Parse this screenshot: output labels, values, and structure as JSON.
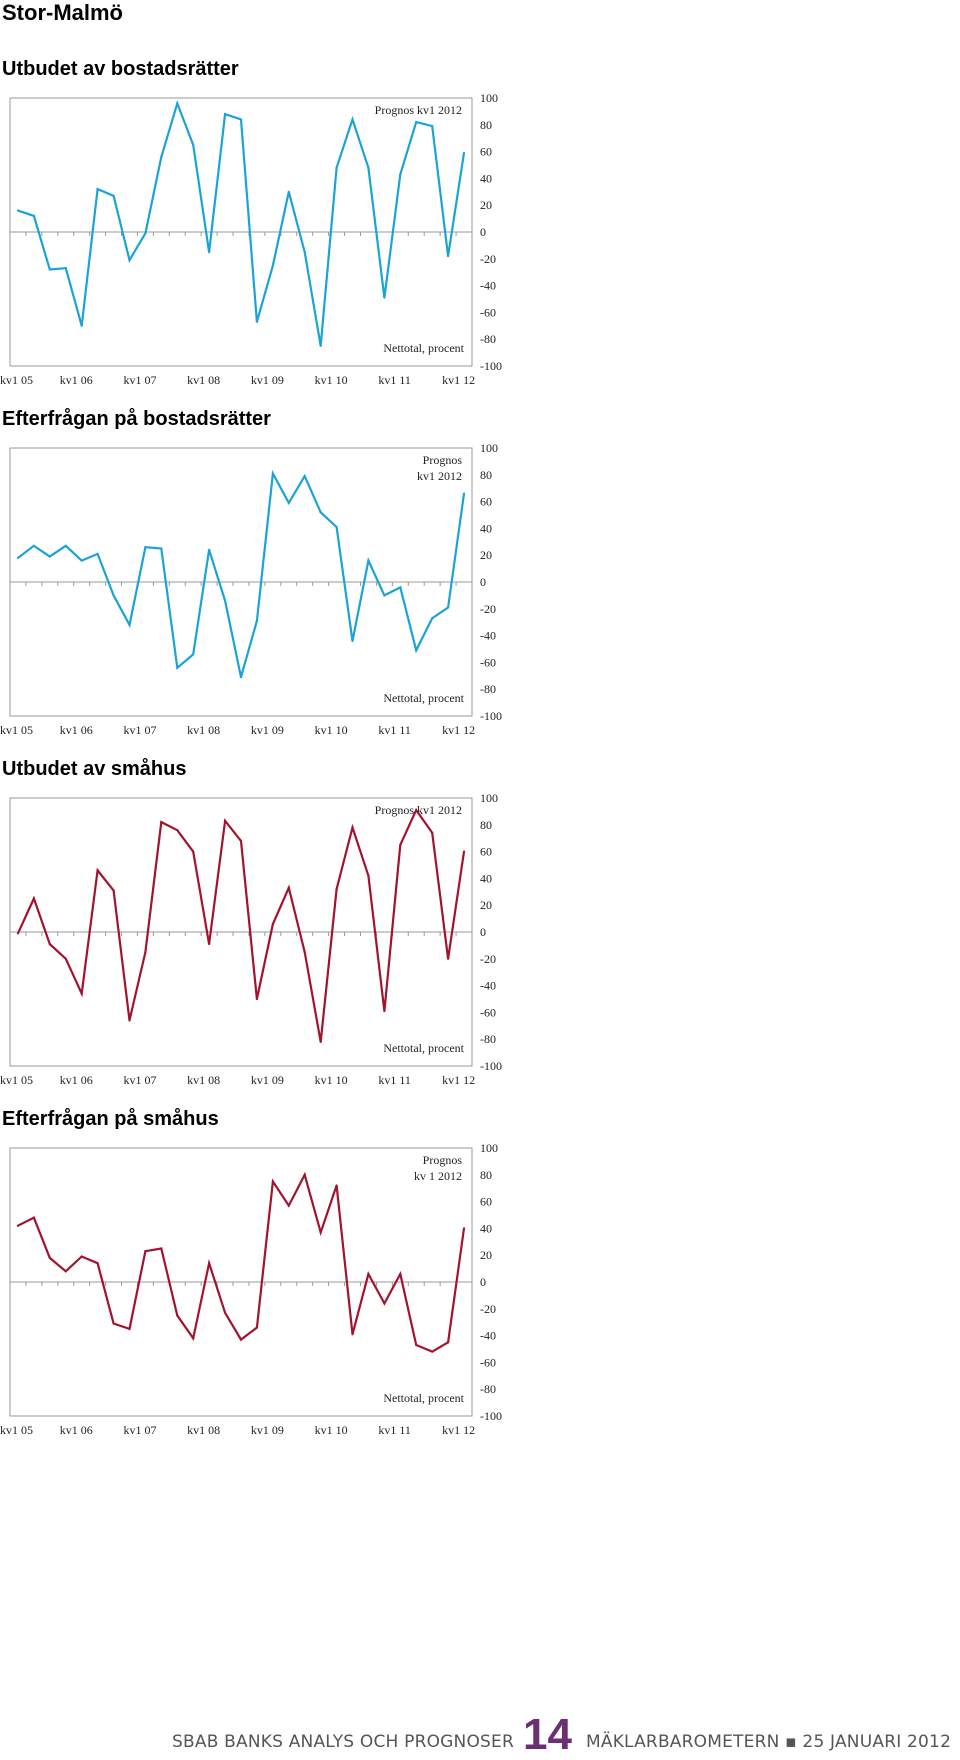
{
  "page_title": "Stor-Malmö",
  "footer": {
    "left": "SBAB BANKS ANALYS OCH PROGNOSER",
    "page_number": "14",
    "right": "MÄKLARBAROMETERN ▪ 25 JANUARI 2012"
  },
  "chart_data": [
    {
      "type": "line",
      "title": "Utbudet av bostadsrätter",
      "annotation_top": [
        "Prognos kv1 2012"
      ],
      "annotation_bottom": "Nettotal, procent",
      "color": "#1ba3d8",
      "ylim": [
        -100,
        100
      ],
      "yticks": [
        "100",
        "80",
        "60",
        "40",
        "20",
        "0",
        "-20",
        "-40",
        "-60",
        "-80",
        "-100"
      ],
      "x_tick_labels": [
        "kv1 05",
        "kv1 06",
        "kv1 07",
        "kv1 08",
        "kv1 09",
        "kv1 10",
        "kv1 11",
        "kv1 12"
      ],
      "values": [
        16,
        12,
        -28,
        -27,
        -70,
        32,
        27,
        -21,
        -1,
        56,
        96,
        65,
        -15,
        88,
        84,
        -67,
        -25,
        30,
        -15,
        -85,
        48,
        84,
        48,
        -49,
        43,
        82,
        79,
        -18,
        59
      ]
    },
    {
      "type": "line",
      "title": "Efterfrågan på bostadsrätter",
      "annotation_top": [
        "Prognos",
        "kv1 2012"
      ],
      "annotation_bottom": "Nettotal, procent",
      "color": "#1ba3d8",
      "ylim": [
        -100,
        100
      ],
      "yticks": [
        "100",
        "80",
        "60",
        "40",
        "20",
        "0",
        "-20",
        "-40",
        "-60",
        "-80",
        "-100"
      ],
      "x_tick_labels": [
        "kv1 05",
        "kv1 06",
        "kv1 07",
        "kv1 08",
        "kv1 09",
        "kv1 10",
        "kv1 11",
        "kv1 12"
      ],
      "values": [
        18,
        27,
        19,
        27,
        16,
        21,
        -10,
        -32,
        26,
        25,
        -64,
        -54,
        24,
        -14,
        -71,
        -29,
        81,
        59,
        79,
        52,
        41,
        -44,
        16,
        -10,
        -4,
        -51,
        -27,
        -19,
        66
      ]
    },
    {
      "type": "line",
      "title": "Utbudet av småhus",
      "annotation_top": [
        "Prognos kv1 2012"
      ],
      "annotation_bottom": "Nettotal, procent",
      "color": "#a3132d",
      "ylim": [
        -100,
        100
      ],
      "yticks": [
        "100",
        "80",
        "60",
        "40",
        "20",
        "0",
        "-20",
        "-40",
        "-60",
        "-80",
        "-100"
      ],
      "x_tick_labels": [
        "kv1 05",
        "kv1 06",
        "kv1 07",
        "kv1 08",
        "kv1 09",
        "kv1 10",
        "kv1 11",
        "kv1 12"
      ],
      "values": [
        -1,
        25,
        -9,
        -20,
        -46,
        46,
        31,
        -66,
        -15,
        82,
        76,
        60,
        -9,
        83,
        68,
        -50,
        6,
        33,
        -15,
        -82,
        32,
        78,
        42,
        -59,
        65,
        91,
        74,
        -20,
        60
      ]
    },
    {
      "type": "line",
      "title": "Efterfrågan på småhus",
      "annotation_top": [
        "Prognos",
        "kv 1 2012"
      ],
      "annotation_bottom": "Nettotal, procent",
      "color": "#a3132d",
      "ylim": [
        -100,
        100
      ],
      "yticks": [
        "100",
        "80",
        "60",
        "40",
        "20",
        "0",
        "-20",
        "-40",
        "-60",
        "-80",
        "-100"
      ],
      "x_tick_labels": [
        "kv1 05",
        "kv1 06",
        "kv1 07",
        "kv1 08",
        "kv1 09",
        "kv1 10",
        "kv1 11",
        "kv1 12"
      ],
      "values": [
        42,
        48,
        18,
        8,
        19,
        14,
        -31,
        -35,
        23,
        25,
        -25,
        -42,
        14,
        -23,
        -43,
        -34,
        75,
        57,
        80,
        37,
        72,
        -39,
        6,
        -16,
        6,
        -47,
        -52,
        -45,
        40
      ]
    }
  ]
}
